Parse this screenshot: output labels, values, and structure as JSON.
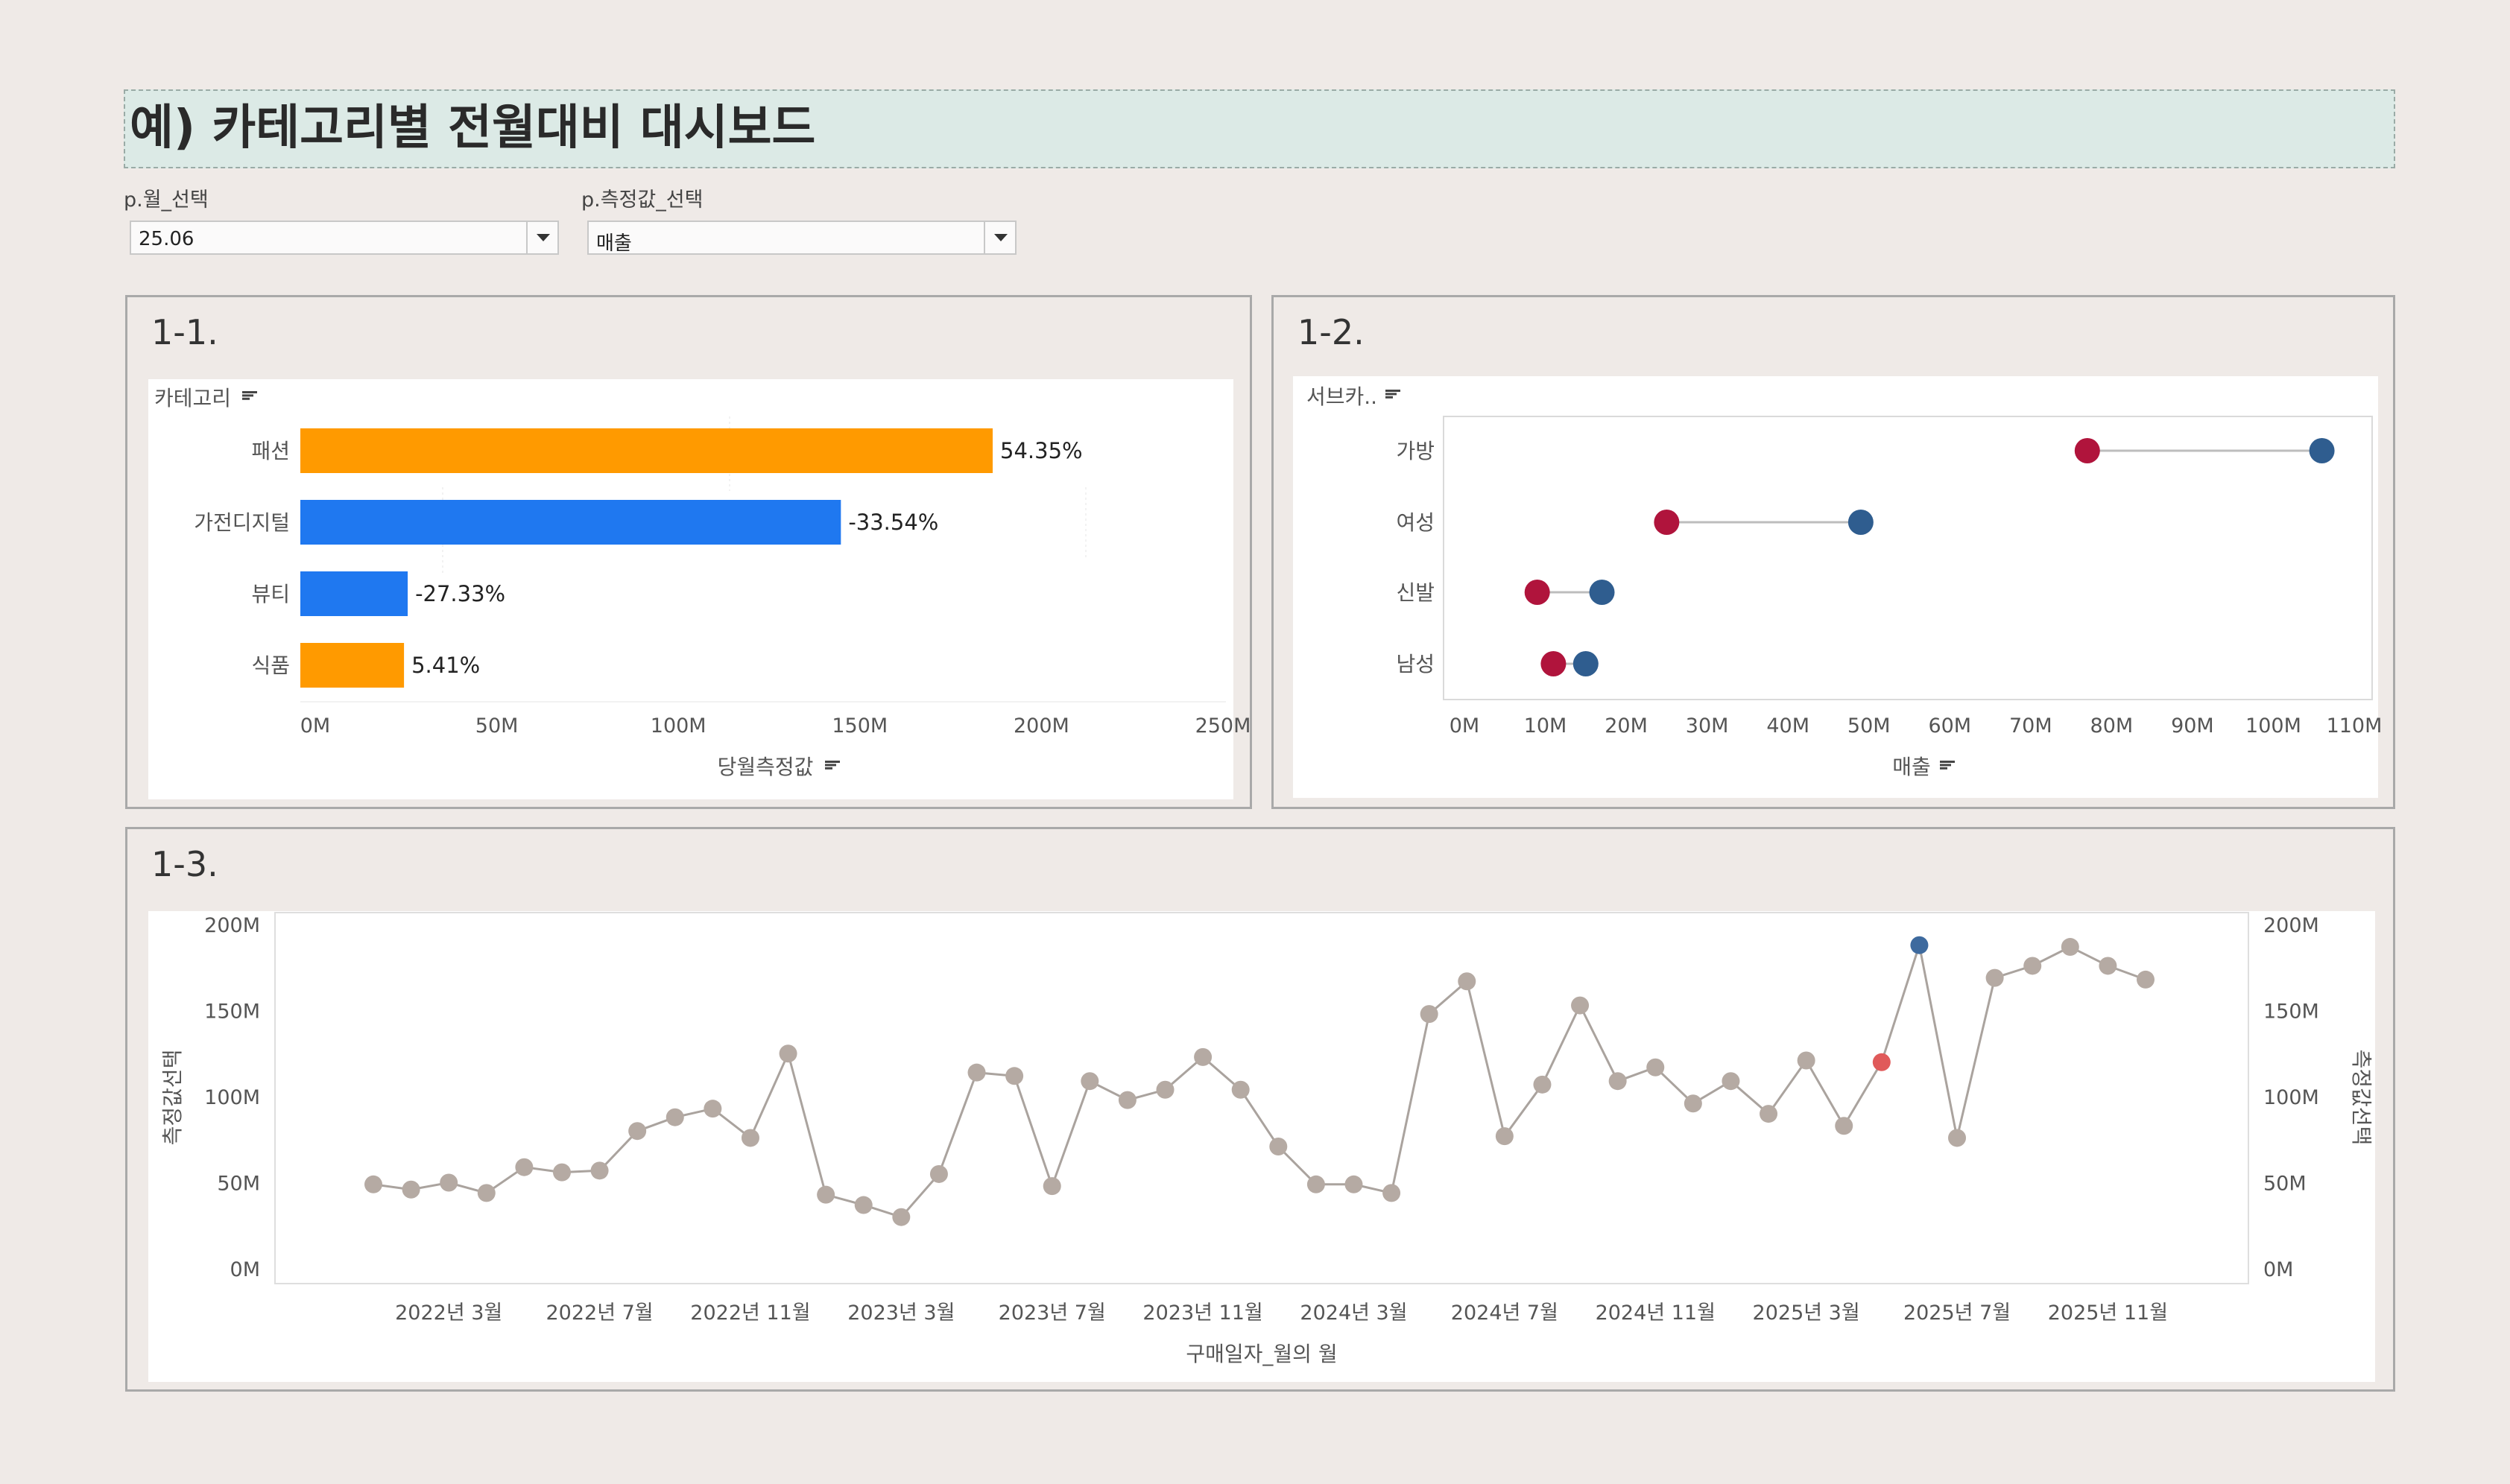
{
  "dashboard": {
    "title": "예) 카테고리별 전월대비 대시보드"
  },
  "params": {
    "month": {
      "label": "p.월_선택",
      "value": "25.06"
    },
    "measure": {
      "label": "p.측정값_선택",
      "value": "매출"
    }
  },
  "panels": {
    "p1": {
      "title": "1-1."
    },
    "p2": {
      "title": "1-2."
    },
    "p3": {
      "title": "1-3."
    }
  },
  "colors": {
    "orange": "#ff9a00",
    "blue": "#1f78f0",
    "red": "#b0143c",
    "navy": "#2f5d8f",
    "grey": "#b5aaa3",
    "line": "#aaa39e",
    "hi_blue": "#3e6a9e",
    "hi_red": "#e05a5a"
  },
  "chart_data": [
    {
      "type": "bar",
      "orientation": "horizontal",
      "header": "카테고리",
      "xlabel": "당월측정값",
      "categories": [
        "패션",
        "가전디지털",
        "뷰티",
        "식품"
      ],
      "values": [
        187,
        146,
        29,
        28
      ],
      "labels": [
        "54.35%",
        "-33.54%",
        "-27.33%",
        "5.41%"
      ],
      "colors": [
        "orange",
        "blue",
        "blue",
        "orange"
      ],
      "xlim": [
        0,
        250
      ],
      "x_ticks": [
        "0M",
        "50M",
        "100M",
        "150M",
        "200M",
        "250M"
      ]
    },
    {
      "type": "dumbbell",
      "header": "서브카..",
      "xlabel": "매출",
      "categories": [
        "가방",
        "여성",
        "신발",
        "남성"
      ],
      "series": [
        {
          "values": [
            77,
            25,
            9,
            11
          ],
          "color": "red"
        },
        {
          "values": [
            106,
            49,
            17,
            15
          ],
          "color": "navy"
        }
      ],
      "xlim": [
        0,
        110
      ],
      "x_ticks": [
        "0M",
        "10M",
        "20M",
        "30M",
        "40M",
        "50M",
        "60M",
        "70M",
        "80M",
        "90M",
        "100M",
        "110M"
      ]
    },
    {
      "type": "line",
      "xlabel": "구매일자_월의 월",
      "ylabel": "측정값선택",
      "ylim": [
        0,
        200
      ],
      "y_ticks": [
        "0M",
        "50M",
        "100M",
        "150M",
        "200M"
      ],
      "x_ticks": [
        "2022년 3월",
        "2022년 7월",
        "2022년 11월",
        "2023년 3월",
        "2023년 7월",
        "2023년 11월",
        "2024년 3월",
        "2024년 7월",
        "2024년 11월",
        "2025년 3월",
        "2025년 7월",
        "2025년 11월"
      ],
      "x_start": "2022-01",
      "values": [
        49,
        46,
        50,
        44,
        59,
        56,
        57,
        80,
        88,
        93,
        76,
        125,
        43,
        37,
        30,
        55,
        114,
        112,
        48,
        109,
        98,
        104,
        123,
        104,
        71,
        49,
        49,
        44,
        148,
        167,
        77,
        107,
        153,
        109,
        117,
        96,
        109,
        90,
        121,
        83,
        120,
        188,
        76,
        169,
        176,
        187,
        176,
        168
      ],
      "highlight": {
        "index": 41,
        "color": "hi_blue",
        "prev_index": 40,
        "prev_color": "hi_red"
      }
    }
  ]
}
